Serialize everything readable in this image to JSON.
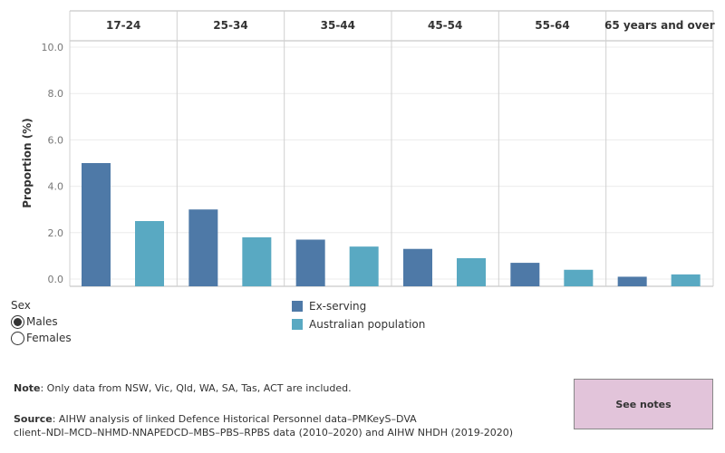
{
  "chart_data": {
    "type": "bar",
    "panels": [
      "17-24",
      "25-34",
      "35-44",
      "45-54",
      "55-64",
      "65 years and over"
    ],
    "series": [
      {
        "name": "Ex-serving",
        "color": "#4e79a7",
        "values": [
          5.0,
          3.0,
          1.7,
          1.3,
          0.7,
          0.1
        ]
      },
      {
        "name": "Australian population",
        "color": "#59a9c2",
        "values": [
          2.5,
          1.8,
          1.4,
          0.9,
          0.4,
          0.2
        ]
      }
    ],
    "ylabel": "Proportion (%)",
    "yticks": [
      "0.0",
      "2.0",
      "4.0",
      "6.0",
      "8.0",
      "10.0"
    ],
    "ylim": [
      0,
      10
    ],
    "grid": true
  },
  "filter": {
    "title": "Sex",
    "options": [
      {
        "label": "Males",
        "selected": true
      },
      {
        "label": "Females",
        "selected": false
      }
    ]
  },
  "note": {
    "label": "Note",
    "text": ": Only data from NSW, Vic, Qld, WA, SA, Tas, ACT are included."
  },
  "source": {
    "label": "Source",
    "line1": ": AIHW analysis of linked Defence Historical Personnel data–PMKeyS–DVA",
    "line2": "client–NDI–MCD–NHMD-NNAPEDCD–MBS–PBS–RPBS data (2010–2020) and AIHW NHDH (2019-2020)"
  },
  "see_notes_label": "See notes"
}
